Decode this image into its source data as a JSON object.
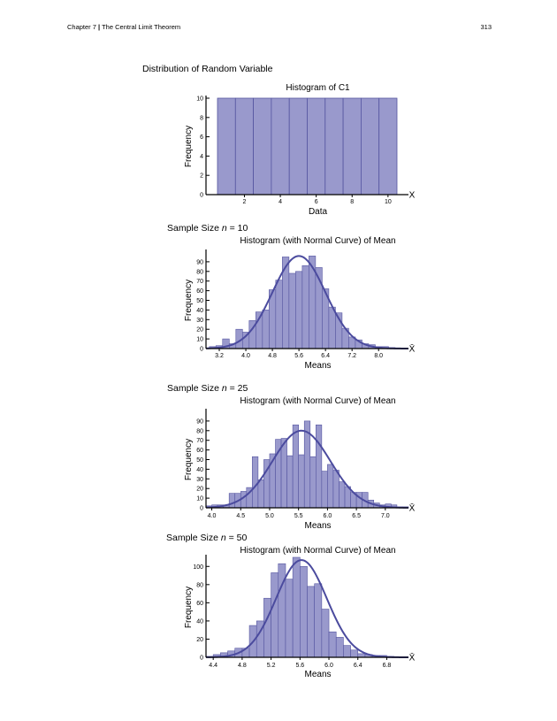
{
  "header": {
    "chapter": "Chapter 7",
    "divider": "|",
    "chapter_title": "The Central Limit Theorem",
    "page_number": "313"
  },
  "section_title": "Distribution of Random Variable",
  "sample_labels": [
    {
      "prefix": "Sample Size ",
      "n": "n",
      "suffix": " = 10"
    },
    {
      "prefix": "Sample Size ",
      "n": "n",
      "suffix": " = 25"
    },
    {
      "prefix": "Sample Size ",
      "n": "n",
      "suffix": " = 50"
    }
  ],
  "colors": {
    "bar_fill": "#9999cc",
    "bar_stroke": "#5555a0",
    "curve": "#4b4b9e",
    "axis": "#000000"
  },
  "chart_data": [
    {
      "type": "bar",
      "title": "Histogram of C1",
      "xlabel": "Data",
      "ylabel": "Frequency",
      "axis_end_label": "X",
      "x_ticks": [
        "2",
        "4",
        "6",
        "8",
        "10"
      ],
      "y_ticks": [
        "0",
        "2",
        "4",
        "6",
        "8",
        "10"
      ],
      "ylim": [
        0,
        10
      ],
      "categories": [
        "1",
        "2",
        "3",
        "4",
        "5",
        "6",
        "7",
        "8",
        "9",
        "10"
      ],
      "values": [
        10,
        10,
        10,
        10,
        10,
        10,
        10,
        10,
        10,
        10
      ]
    },
    {
      "type": "bar",
      "title": "Histogram (with Normal Curve) of Mean",
      "xlabel": "Means",
      "ylabel": "Frequency",
      "axis_end_label": "X̄",
      "x_ticks": [
        "3.2",
        "4.0",
        "4.8",
        "5.6",
        "6.4",
        "7.2",
        "8.0"
      ],
      "y_ticks": [
        "0",
        "10",
        "20",
        "30",
        "40",
        "50",
        "60",
        "70",
        "80",
        "90"
      ],
      "ylim": [
        0,
        100
      ],
      "xlim": [
        2.8,
        8.9
      ],
      "bin_width": 0.2,
      "bin_start": 2.9,
      "values": [
        2,
        3,
        10,
        5,
        20,
        17,
        29,
        38,
        40,
        61,
        71,
        95,
        78,
        80,
        86,
        96,
        84,
        62,
        43,
        37,
        21,
        12,
        9,
        5,
        4,
        2,
        2,
        1
      ],
      "normal_curve": {
        "mean": 5.6,
        "sd": 0.8,
        "peak": 96
      }
    },
    {
      "type": "bar",
      "title": "Histogram (with Normal Curve) of Mean",
      "xlabel": "Means",
      "ylabel": "Frequency",
      "axis_end_label": "X̄",
      "x_ticks": [
        "4.0",
        "4.5",
        "5.0",
        "5.5",
        "6.0",
        "6.5",
        "7.0"
      ],
      "y_ticks": [
        "0",
        "10",
        "20",
        "30",
        "40",
        "50",
        "60",
        "70",
        "80",
        "90"
      ],
      "ylim": [
        0,
        100
      ],
      "xlim": [
        3.9,
        7.4
      ],
      "bin_width": 0.1,
      "bin_start": 3.9,
      "values": [
        2,
        3,
        3,
        3,
        15,
        15,
        17,
        21,
        53,
        29,
        50,
        56,
        71,
        72,
        54,
        86,
        55,
        90,
        53,
        86,
        38,
        45,
        39,
        27,
        22,
        16,
        16,
        16,
        8,
        5,
        3,
        4,
        3,
        1,
        1
      ],
      "normal_curve": {
        "mean": 5.55,
        "sd": 0.5,
        "peak": 80
      }
    },
    {
      "type": "bar",
      "title": "Histogram (with Normal Curve) of Mean",
      "xlabel": "Means",
      "ylabel": "Frequency",
      "axis_end_label": "X̄",
      "x_ticks": [
        "4.4",
        "4.8",
        "5.2",
        "5.6",
        "6.0",
        "6.4",
        "6.8"
      ],
      "y_ticks": [
        "0",
        "20",
        "40",
        "60",
        "80",
        "100"
      ],
      "ylim": [
        0,
        110
      ],
      "xlim": [
        4.3,
        7.1
      ],
      "bin_width": 0.1,
      "bin_start": 4.3,
      "values": [
        1,
        3,
        5,
        7,
        10,
        10,
        35,
        40,
        65,
        93,
        103,
        86,
        110,
        100,
        78,
        81,
        53,
        28,
        22,
        13,
        8,
        4,
        3,
        2,
        2,
        1
      ],
      "normal_curve": {
        "mean": 5.62,
        "sd": 0.35,
        "peak": 107
      }
    }
  ]
}
